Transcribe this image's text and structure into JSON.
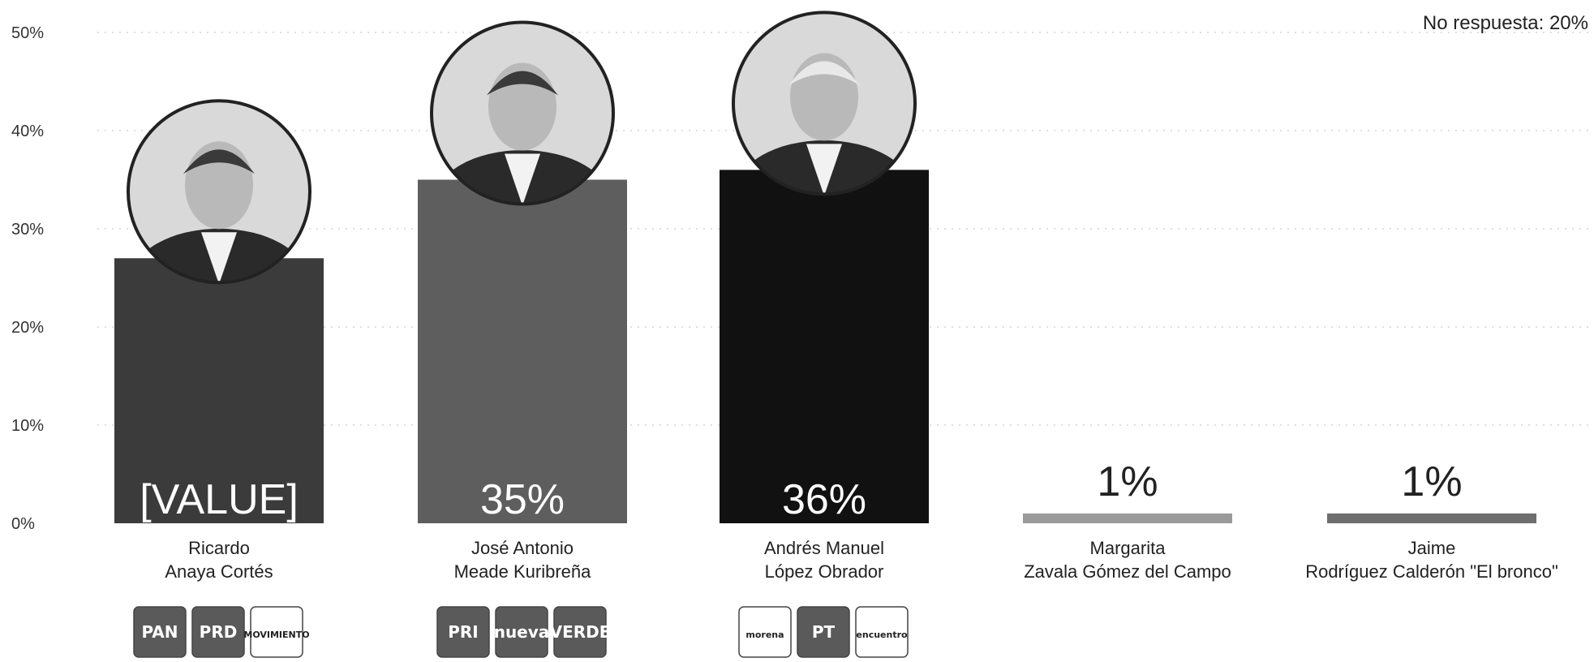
{
  "note": "No respuesta: 20%",
  "chart_data": {
    "type": "bar",
    "ylim": [
      0,
      50
    ],
    "yticks": [
      "0%",
      "10%",
      "20%",
      "30%",
      "40%",
      "50%"
    ],
    "grid": true,
    "categories": [
      "Ricardo Anaya Cortés",
      "José Antonio Meade Kuribreña",
      "Andrés Manuel López Obrador",
      "Margarita Zavala Gómez del Campo",
      "Jaime Rodríguez Calderón \"El bronco\""
    ],
    "values": [
      27,
      35,
      36,
      1,
      1
    ],
    "data_labels": [
      "[VALUE]",
      "35%",
      "36%",
      "1%",
      "1%"
    ],
    "colors": [
      "#3b3b3b",
      "#5e5e5e",
      "#111111",
      "#9a9a9a",
      "#6e6e6e"
    ]
  },
  "candidates": [
    {
      "name_line1": "Ricardo",
      "name_line2": "Anaya Cortés",
      "logos": [
        "PAN",
        "PRD",
        "MOVIMIENTO CIUDADANO"
      ],
      "photo": "person-photo"
    },
    {
      "name_line1": "José Antonio",
      "name_line2": "Meade Kuribreña",
      "logos": [
        "PRI",
        "nueva alianza",
        "VERDE"
      ],
      "photo": "person-photo"
    },
    {
      "name_line1": "Andrés Manuel",
      "name_line2": "López Obrador",
      "logos": [
        "morena",
        "PT",
        "encuentro social"
      ],
      "photo": "person-photo"
    },
    {
      "name_line1": "Margarita",
      "name_line2": "Zavala Gómez del Campo"
    },
    {
      "name_line1": "Jaime",
      "name_line2": "Rodríguez Calderón \"El bronco\""
    }
  ]
}
